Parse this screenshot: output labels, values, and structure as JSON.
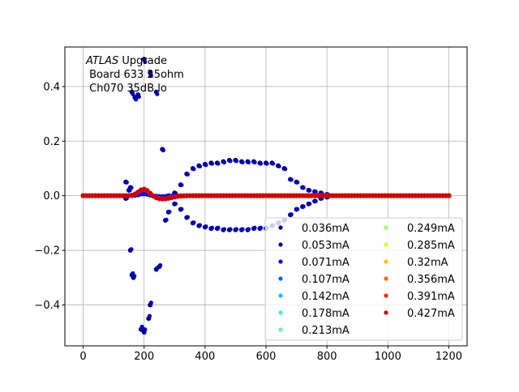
{
  "chart_data": {
    "type": "scatter",
    "title": "",
    "annotation": {
      "line1_italic": "ATLAS",
      "line1_rest": " Upgrade",
      "line2": " Board 633 25ohm",
      "line3": " Ch070 35dB lo"
    },
    "xlabel": "",
    "ylabel": "",
    "xlim": [
      -60,
      1260
    ],
    "ylim": [
      -0.55,
      0.545
    ],
    "xticks": [
      0,
      200,
      400,
      600,
      800,
      1000,
      1200
    ],
    "xtick_labels": [
      "0",
      "200",
      "400",
      "600",
      "800",
      "1000",
      "1200"
    ],
    "yticks": [
      -0.4,
      -0.2,
      0.0,
      0.2,
      0.4
    ],
    "ytick_labels": [
      "−0.4",
      "−0.2",
      "0.0",
      "0.2",
      "0.4"
    ],
    "grid": true,
    "legend_placement": "lower-right",
    "legend_columns": 2,
    "series": [
      {
        "name": "0.036mA",
        "color": "#00007f"
      },
      {
        "name": "0.053mA",
        "color": "#00009e"
      },
      {
        "name": "0.071mA",
        "color": "#0000ff"
      },
      {
        "name": "0.107mA",
        "color": "#0064ff"
      },
      {
        "name": "0.142mA",
        "color": "#00c8ff"
      },
      {
        "name": "0.178mA",
        "color": "#29ffce"
      },
      {
        "name": "0.213mA",
        "color": "#5cffa0"
      },
      {
        "name": "0.249mA",
        "color": "#9cff5a"
      },
      {
        "name": "0.285mA",
        "color": "#e4ff13"
      },
      {
        "name": "0.32mA",
        "color": "#ffc400"
      },
      {
        "name": "0.356mA",
        "color": "#ff6800"
      },
      {
        "name": "0.391mA",
        "color": "#ff2300"
      },
      {
        "name": "0.427mA",
        "color": "#d40000"
      }
    ],
    "cluster_upper": {
      "x": [
        140,
        150,
        155,
        160,
        170,
        180,
        200,
        220,
        240,
        260,
        280,
        300,
        320,
        340,
        360,
        380,
        400,
        420,
        440,
        460,
        480,
        500,
        520,
        540,
        560,
        580,
        600,
        620,
        640,
        660,
        680,
        700,
        720,
        740,
        760,
        780,
        800
      ],
      "y": [
        0.05,
        0.02,
        0.03,
        0.38,
        0.36,
        0.37,
        0.5,
        0.45,
        0.38,
        0.17,
        0.0,
        0.01,
        0.04,
        0.08,
        0.1,
        0.11,
        0.115,
        0.12,
        0.12,
        0.125,
        0.13,
        0.13,
        0.125,
        0.125,
        0.125,
        0.12,
        0.12,
        0.12,
        0.11,
        0.1,
        0.06,
        0.05,
        0.03,
        0.02,
        0.015,
        0.01,
        0.005
      ]
    },
    "cluster_lower": {
      "x": [
        140,
        155,
        160,
        165,
        190,
        200,
        215,
        220,
        240,
        250,
        270,
        280,
        300,
        320,
        340,
        360,
        380,
        400,
        420,
        440,
        460,
        480,
        500,
        520,
        540,
        560,
        580,
        600,
        620,
        640,
        660,
        680,
        700,
        720,
        740,
        760,
        780,
        800
      ],
      "y": [
        -0.01,
        -0.2,
        -0.29,
        -0.3,
        -0.49,
        -0.5,
        -0.45,
        -0.4,
        -0.27,
        -0.26,
        -0.09,
        -0.06,
        -0.03,
        -0.05,
        -0.08,
        -0.1,
        -0.11,
        -0.115,
        -0.12,
        -0.12,
        -0.125,
        -0.125,
        -0.125,
        -0.125,
        -0.125,
        -0.12,
        -0.12,
        -0.12,
        -0.11,
        -0.1,
        -0.09,
        -0.07,
        -0.05,
        -0.04,
        -0.03,
        -0.02,
        -0.01,
        -0.005
      ]
    },
    "main_trace": {
      "x_start": 0,
      "x_end": 1200,
      "step": 10,
      "pulse_center": 200,
      "pulse_amplitude": 0.025,
      "pulse_width": 25,
      "undershoot_center": 260,
      "undershoot_amplitude": -0.012,
      "undershoot_width": 40
    }
  }
}
